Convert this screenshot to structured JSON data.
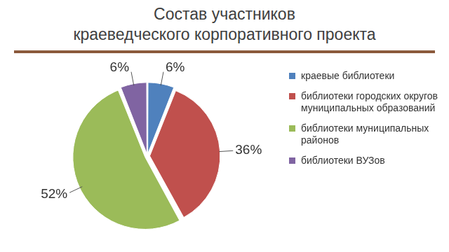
{
  "chart_data": {
    "type": "pie",
    "title": [
      "Состав участников",
      "краеведческого корпоративного проекта"
    ],
    "categories": [
      "краевые библиотеки",
      "библиотеки городских округов муниципальных образований",
      "библиотеки муниципальных районов",
      "библиотеки ВУЗов"
    ],
    "values": [
      6,
      36,
      52,
      6
    ],
    "value_labels": [
      "6%",
      "36%",
      "52%",
      "6%"
    ],
    "colors": [
      "#4f81bd",
      "#c0504d",
      "#9bbb59",
      "#8064a2"
    ],
    "data_labels": true,
    "legend": "right"
  }
}
